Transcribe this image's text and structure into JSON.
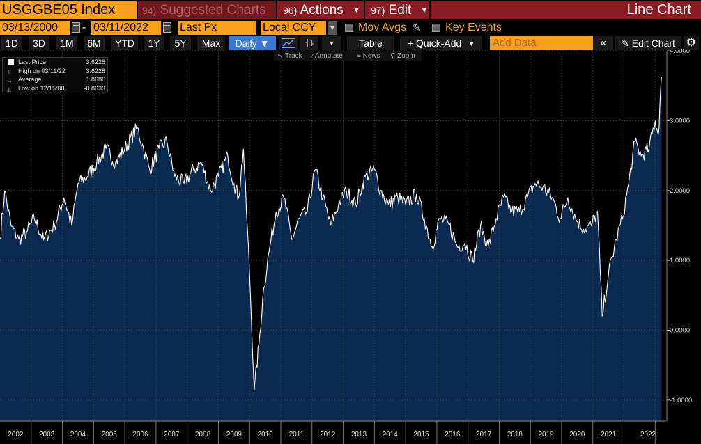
{
  "header": {
    "ticker": "USGGBE05 Index",
    "suggested_num": "94)",
    "suggested_label": "Suggested Charts",
    "actions_num": "96)",
    "actions_label": "Actions",
    "edit_num": "97)",
    "edit_label": "Edit",
    "view_title": "Line Chart"
  },
  "controls": {
    "start_date": "03/13/2000",
    "date_sep": "-",
    "end_date": "03/11/2022",
    "field": "Last Px",
    "currency": "Local CCY",
    "mov_avgs": "Mov Avgs",
    "key_events": "Key Events"
  },
  "toolbar": {
    "ranges": [
      "1D",
      "3D",
      "1M",
      "6M",
      "YTD",
      "1Y",
      "5Y",
      "Max"
    ],
    "frequency": "Daily ▼",
    "table": "Table",
    "quick_add": "+ Quick-Add",
    "add_data_placeholder": "Add Data",
    "edit_chart": "Edit Chart",
    "track": "Track",
    "annotate": "Annotate",
    "news": "News",
    "zoom": "Zoom"
  },
  "legend": {
    "last_price_label": "Last Price",
    "last_price_value": "3.6228",
    "high_label": "High on 03/11/22",
    "high_value": "3.6228",
    "average_label": "Average",
    "average_value": "1.8686",
    "low_label": "Low on 12/15/08",
    "low_value": "-0.8633"
  },
  "chart_data": {
    "type": "area",
    "title": "USGGBE05 Index",
    "ylim": [
      -1.3,
      4.0
    ],
    "y_ticks": [
      "4.0000",
      "3.0000",
      "2.0000",
      "1.0000",
      "0.0000",
      "-1.0000"
    ],
    "y_tick_values": [
      4,
      3,
      2,
      1,
      0,
      -1
    ],
    "x_ticks": [
      "2002",
      "2003",
      "2004",
      "2005",
      "2006",
      "2007",
      "2008",
      "2009",
      "2010",
      "2011",
      "2012",
      "2013",
      "2014",
      "2015",
      "2016",
      "2017",
      "2018",
      "2019",
      "2020",
      "2021",
      "2022"
    ],
    "series": [
      {
        "values": [
          [
            2001.0,
            1.3
          ],
          [
            2001.15,
            2.0
          ],
          [
            2001.35,
            1.5
          ],
          [
            2001.6,
            1.3
          ],
          [
            2001.85,
            1.4
          ],
          [
            2002.1,
            1.6
          ],
          [
            2002.4,
            1.3
          ],
          [
            2002.75,
            1.5
          ],
          [
            2003.05,
            1.9
          ],
          [
            2003.3,
            1.5
          ],
          [
            2003.5,
            2.1
          ],
          [
            2003.8,
            2.2
          ],
          [
            2004.1,
            2.4
          ],
          [
            2004.4,
            2.6
          ],
          [
            2004.7,
            2.4
          ],
          [
            2005.0,
            2.6
          ],
          [
            2005.4,
            2.9
          ],
          [
            2005.6,
            2.6
          ],
          [
            2005.8,
            2.3
          ],
          [
            2006.1,
            2.6
          ],
          [
            2006.35,
            2.7
          ],
          [
            2006.6,
            2.2
          ],
          [
            2006.9,
            2.1
          ],
          [
            2007.2,
            2.3
          ],
          [
            2007.45,
            2.4
          ],
          [
            2007.75,
            2.0
          ],
          [
            2008.0,
            2.2
          ],
          [
            2008.3,
            2.5
          ],
          [
            2008.5,
            2.1
          ],
          [
            2008.65,
            1.9
          ],
          [
            2008.8,
            2.6
          ],
          [
            2009.0,
            0.8
          ],
          [
            2009.15,
            -0.86
          ],
          [
            2009.3,
            -0.2
          ],
          [
            2009.45,
            0.6
          ],
          [
            2009.65,
            1.2
          ],
          [
            2009.85,
            1.7
          ],
          [
            2010.1,
            1.9
          ],
          [
            2010.35,
            1.3
          ],
          [
            2010.6,
            1.6
          ],
          [
            2010.85,
            1.7
          ],
          [
            2011.1,
            2.3
          ],
          [
            2011.35,
            1.9
          ],
          [
            2011.6,
            1.5
          ],
          [
            2011.85,
            1.8
          ],
          [
            2012.1,
            2.0
          ],
          [
            2012.4,
            1.8
          ],
          [
            2012.7,
            2.2
          ],
          [
            2013.0,
            2.3
          ],
          [
            2013.2,
            2.0
          ],
          [
            2013.45,
            1.8
          ],
          [
            2013.75,
            1.9
          ],
          [
            2014.0,
            1.8
          ],
          [
            2014.35,
            1.95
          ],
          [
            2014.6,
            1.6
          ],
          [
            2014.85,
            1.2
          ],
          [
            2015.1,
            1.6
          ],
          [
            2015.4,
            1.5
          ],
          [
            2015.65,
            1.2
          ],
          [
            2015.9,
            1.25
          ],
          [
            2016.15,
            1.0
          ],
          [
            2016.4,
            1.5
          ],
          [
            2016.65,
            1.2
          ],
          [
            2016.9,
            1.6
          ],
          [
            2017.15,
            1.9
          ],
          [
            2017.4,
            1.7
          ],
          [
            2017.65,
            1.7
          ],
          [
            2017.9,
            1.9
          ],
          [
            2018.15,
            2.1
          ],
          [
            2018.4,
            2.05
          ],
          [
            2018.7,
            1.9
          ],
          [
            2018.95,
            1.6
          ],
          [
            2019.2,
            1.9
          ],
          [
            2019.45,
            1.6
          ],
          [
            2019.7,
            1.45
          ],
          [
            2019.95,
            1.5
          ],
          [
            2020.15,
            1.7
          ],
          [
            2020.3,
            0.2
          ],
          [
            2020.5,
            0.8
          ],
          [
            2020.75,
            1.3
          ],
          [
            2020.95,
            1.6
          ],
          [
            2021.15,
            2.1
          ],
          [
            2021.35,
            2.7
          ],
          [
            2021.55,
            2.5
          ],
          [
            2021.8,
            2.6
          ],
          [
            2022.0,
            3.0
          ],
          [
            2022.1,
            2.8
          ],
          [
            2022.2,
            3.62
          ]
        ]
      }
    ]
  },
  "colors": {
    "accent_orange": "#f8a01c",
    "menu_red": "#8a1c22",
    "fill": "#0c2a4f",
    "line": "#ffffff",
    "active_blue": "#3a78d6"
  }
}
